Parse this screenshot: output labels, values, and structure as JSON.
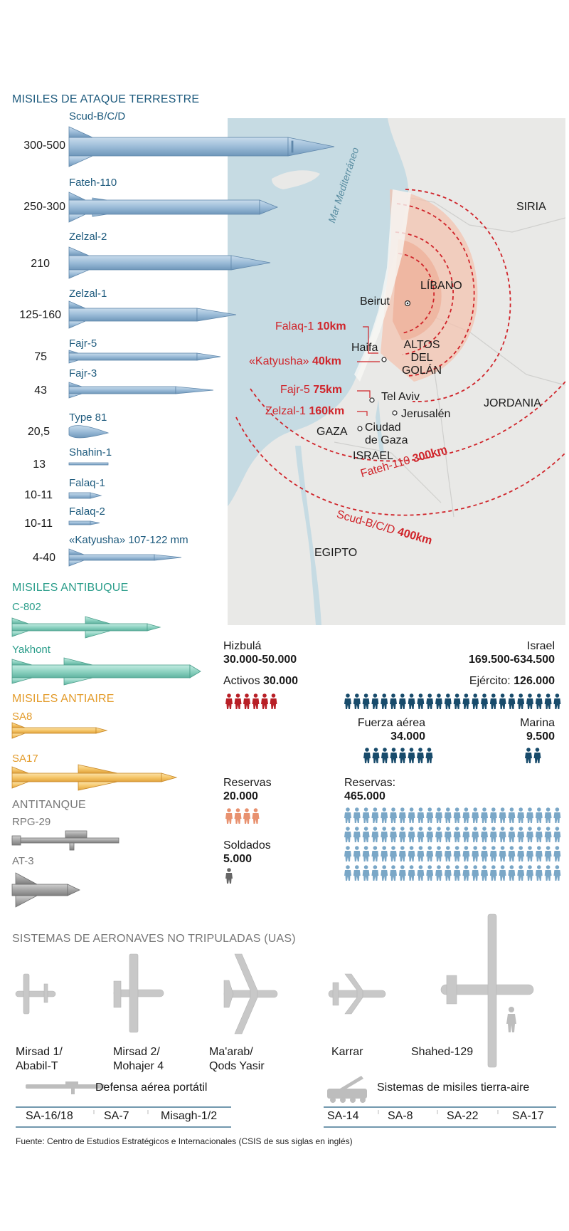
{
  "land_attack": {
    "title": "MISILES DE ATAQUE TERRESTRE",
    "missiles": [
      {
        "name": "Scud-B/C/D",
        "range": "300-500"
      },
      {
        "name": "Fateh-110",
        "range": "250-300"
      },
      {
        "name": "Zelzal-2",
        "range": "210"
      },
      {
        "name": "Zelzal-1",
        "range": "125-160"
      },
      {
        "name": "Fajr-5",
        "range": "75"
      },
      {
        "name": "Fajr-3",
        "range": "43"
      },
      {
        "name": "Type 81",
        "range": "20,5"
      },
      {
        "name": "Shahin-1",
        "range": "13"
      },
      {
        "name": "Falaq-1",
        "range": "10-11"
      },
      {
        "name": "Falaq-2",
        "range": "10-11"
      },
      {
        "name": "«Katyusha» 107-122 mm",
        "range": "4-40"
      }
    ]
  },
  "anti_ship": {
    "title": "MISILES ANTIBUQUE",
    "items": [
      "C-802",
      "Yakhont"
    ]
  },
  "anti_air": {
    "title": "MISILES ANTIAIRE",
    "items": [
      "SA8",
      "SA17"
    ]
  },
  "anti_tank": {
    "title": "ANTITANQUE",
    "items": [
      "RPG-29",
      "AT-3"
    ]
  },
  "map": {
    "sea": "Mar Mediterráneo",
    "countries": [
      "SIRIA",
      "LÍBANO",
      "ALTOS DEL GOLÁN",
      "JORDANIA",
      "GAZA",
      "ISRAEL",
      "EGIPTO"
    ],
    "cities": [
      "Beirut",
      "Haifa",
      "Tel Aviv",
      "Jerusalén",
      "Ciudad de Gaza"
    ],
    "ranges": [
      {
        "name": "Falaq-1",
        "km": "10km"
      },
      {
        "name": "«Katyusha»",
        "km": "40km"
      },
      {
        "name": "Fajr-5",
        "km": "75km"
      },
      {
        "name": "Zelzal-1",
        "km": "160km"
      },
      {
        "name": "Fateh-110",
        "km": "300km"
      },
      {
        "name": "Scud-B/C/D",
        "km": "400km"
      }
    ],
    "colors": {
      "sea": "#c6dbe3",
      "land": "#e9e9e7",
      "range_line": "#d0242a",
      "range_fill": "#f3c3b0"
    }
  },
  "forces": {
    "hezbollah": {
      "name": "Hizbulá",
      "total": "30.000-50.000",
      "active_label": "Activos",
      "active": "30.000",
      "reserves_label": "Reservas",
      "reserves": "20.000",
      "soldiers_label": "Soldados",
      "soldiers": "5.000",
      "colors": {
        "active": "#b81f26",
        "reserves": "#e8916f",
        "soldiers": "#666666"
      }
    },
    "israel": {
      "name": "Israel",
      "total": "169.500-634.500",
      "army_label": "Ejército:",
      "army": "126.000",
      "airforce_label": "Fuerza aérea",
      "airforce": "34.000",
      "navy_label": "Marina",
      "navy": "9.500",
      "reserves_label": "Reservas:",
      "reserves": "465.000",
      "colors": {
        "army": "#184b6b",
        "reserves": "#7aa7c7"
      }
    }
  },
  "uas": {
    "title": "SISTEMAS DE AERONAVES NO TRIPULADAS (UAS)",
    "items": [
      {
        "line1": "Mirsad 1/",
        "line2": "Ababil-T"
      },
      {
        "line1": "Mirsad 2/",
        "line2": "Mohajer 4"
      },
      {
        "line1": "Ma'arab/",
        "line2": "Qods Yasir"
      },
      {
        "line1": "Karrar",
        "line2": ""
      },
      {
        "line1": "Shahed-129",
        "line2": ""
      }
    ]
  },
  "air_defense": {
    "portable_title": "Defensa aérea portátil",
    "portable": [
      "SA-16/18",
      "SA-7",
      "Misagh-1/2"
    ],
    "sam_title": "Sistemas de misiles tierra-aire",
    "sam": [
      "SA-14",
      "SA-8",
      "SA-22",
      "SA-17"
    ]
  },
  "source": "Fuente: Centro de Estudios Estratégicos e Internacionales (CSIS de sus siglas en inglés)"
}
